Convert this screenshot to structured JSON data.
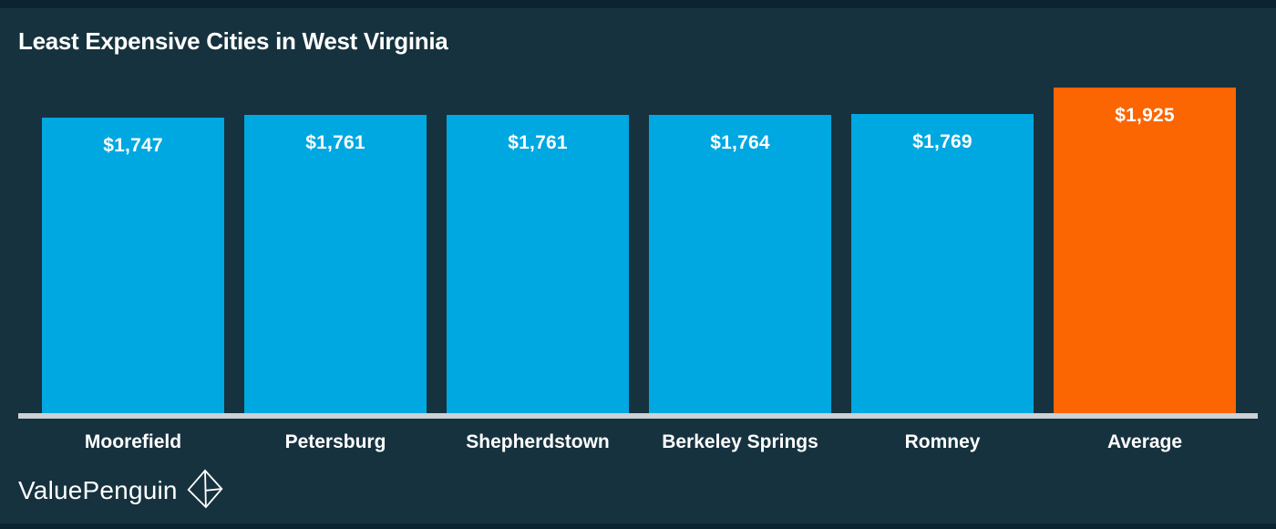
{
  "header": {
    "title": "Least Expensive Cities in West Virginia"
  },
  "chart_data": {
    "type": "bar",
    "title": "Least Expensive Cities in West Virginia",
    "categories": [
      "Moorefield",
      "Petersburg",
      "Shepherdstown",
      "Berkeley Springs",
      "Romney",
      "Average"
    ],
    "values": [
      1747,
      1761,
      1761,
      1764,
      1769,
      1925
    ],
    "value_labels": [
      "$1,747",
      "$1,761",
      "$1,761",
      "$1,764",
      "$1,769",
      "$1,925"
    ],
    "xlabel": "",
    "ylabel": "",
    "ylim": [
      0,
      1925
    ],
    "grid": false,
    "legend": false,
    "bar_color_default": "#00a8e1",
    "bar_color_highlight": "#fb6502",
    "highlight_index": 5,
    "axis_line_color": "#ccd1d5",
    "value_label_color": "#ffffff",
    "category_label_color": "#ffffff"
  },
  "footer": {
    "brand": "ValuePenguin",
    "logo_icon": "origami-penguin-icon"
  },
  "colors": {
    "background": "#16323e",
    "edge_strip": "#0b2430",
    "text": "#ffffff"
  }
}
